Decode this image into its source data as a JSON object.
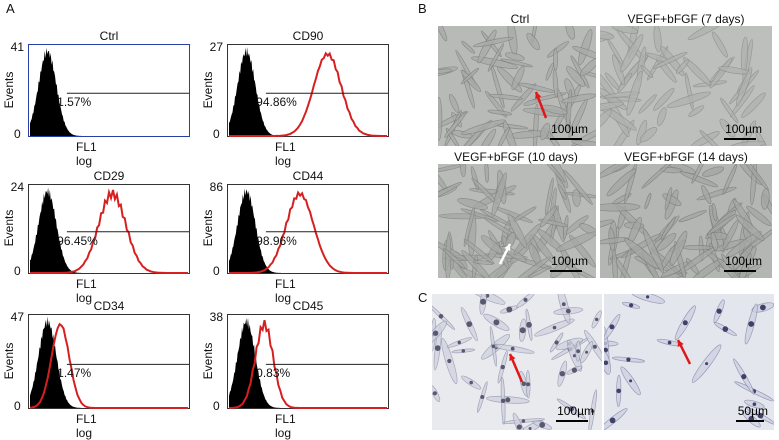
{
  "panel_labels": {
    "a": "A",
    "b": "B",
    "c": "C"
  },
  "flow": {
    "ylabel": "Events",
    "xlabel": "FL1 log",
    "plots": [
      {
        "title": "Ctrl",
        "ymax": "41",
        "percent": "1.57%",
        "has_marker": false,
        "marker_peak": 0
      },
      {
        "title": "CD90",
        "ymax": "27",
        "percent": "94.86%",
        "has_marker": true,
        "marker_peak": 0.62
      },
      {
        "title": "CD29",
        "ymax": "24",
        "percent": "96.45%",
        "has_marker": true,
        "marker_peak": 0.52
      },
      {
        "title": "CD44",
        "ymax": "86",
        "percent": "98.96%",
        "has_marker": true,
        "marker_peak": 0.45
      },
      {
        "title": "CD34",
        "ymax": "47",
        "percent": "1.47%",
        "has_marker": true,
        "marker_peak": 0.2
      },
      {
        "title": "CD45",
        "ymax": "38",
        "percent": "0.83%",
        "has_marker": true,
        "marker_peak": 0.23
      }
    ]
  },
  "micro": {
    "titles": [
      "Ctrl",
      "VEGF+bFGF  (7 days)",
      "VEGF+bFGF  (10 days)",
      "VEGF+bFGF  (14 days)"
    ],
    "scale_100": "100µm",
    "scale_50": "50µm"
  },
  "colors": {
    "histogram_fill": "#000000",
    "marker_line": "#d62020",
    "ctrl_frame": "#2b3ea8",
    "arrow_red": "#e01818",
    "arrow_white": "#ffffff"
  }
}
